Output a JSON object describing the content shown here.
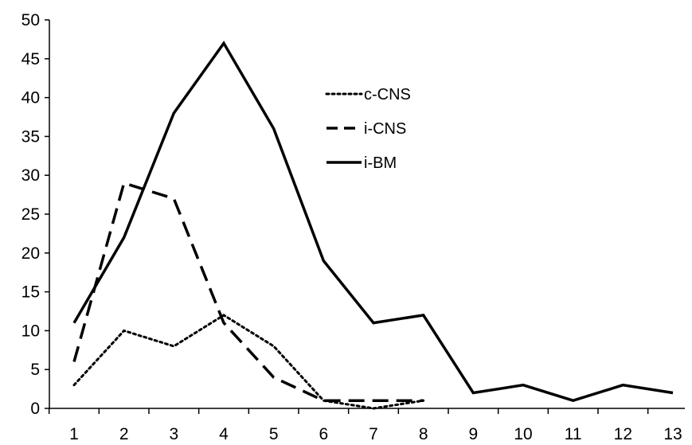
{
  "chart_data": {
    "type": "line",
    "title": "",
    "xlabel": "",
    "ylabel": "",
    "x": [
      1,
      2,
      3,
      4,
      5,
      6,
      7,
      8,
      9,
      10,
      11,
      12,
      13
    ],
    "xlim": [
      1,
      13
    ],
    "ylim": [
      0,
      50
    ],
    "yticks": [
      0,
      5,
      10,
      15,
      20,
      25,
      30,
      35,
      40,
      45,
      50
    ],
    "grid": false,
    "legend": "top-center",
    "series": [
      {
        "name": "c-CNS",
        "style": "dotted",
        "color": "#000000",
        "x": [
          1,
          2,
          3,
          4,
          5,
          6,
          7,
          8
        ],
        "values": [
          3,
          10,
          8,
          12,
          8,
          1,
          0,
          1
        ]
      },
      {
        "name": "i-CNS",
        "style": "dashed",
        "color": "#000000",
        "x": [
          1,
          2,
          3,
          4,
          5,
          6,
          7,
          8
        ],
        "values": [
          6,
          29,
          27,
          11,
          4,
          1,
          1,
          1
        ]
      },
      {
        "name": "i-BM",
        "style": "solid",
        "color": "#000000",
        "x": [
          1,
          2,
          3,
          4,
          5,
          6,
          7,
          8,
          9,
          10,
          11,
          12,
          13
        ],
        "values": [
          11,
          22,
          38,
          47,
          36,
          19,
          11,
          12,
          2,
          3,
          1,
          3,
          2
        ]
      }
    ]
  }
}
